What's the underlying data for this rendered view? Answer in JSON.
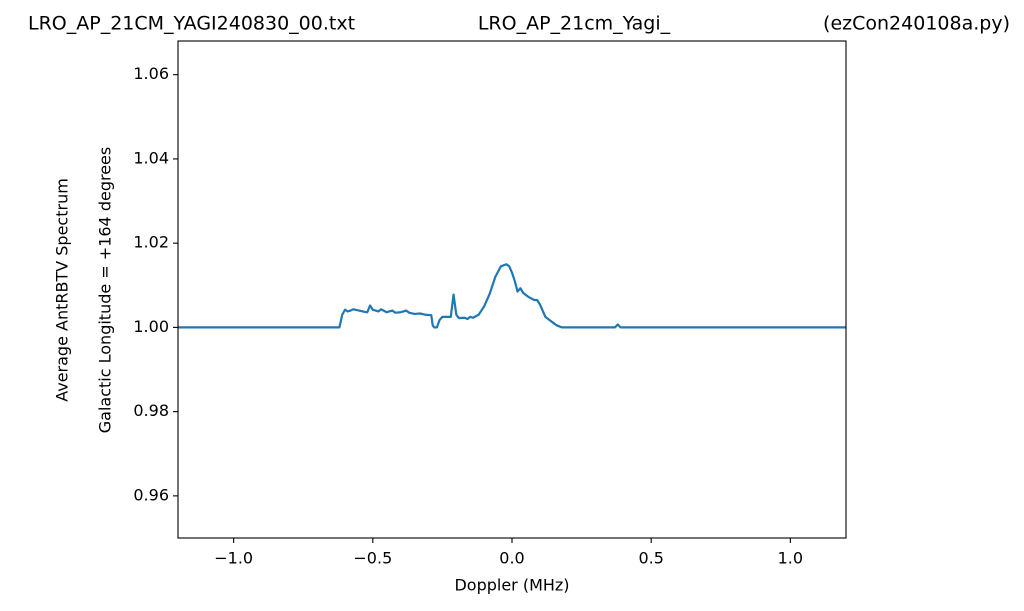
{
  "chart_data": {
    "type": "line",
    "title_left": "LRO_AP_21CM_YAGI240830_00.txt",
    "title": "LRO_AP_21cm_Yagi_",
    "title_right": "(ezCon240108a.py)",
    "x_label": "Doppler (MHz)",
    "y_label": [
      "Average AntRBTV Spectrum",
      "Galactic Longitude = +164 degrees"
    ],
    "xlim": [
      -1.2,
      1.2
    ],
    "ylim": [
      0.95,
      1.068
    ],
    "xticks": [
      {
        "value": -1.0,
        "label": "−1.0"
      },
      {
        "value": -0.5,
        "label": "−0.5"
      },
      {
        "value": 0.0,
        "label": "0.0"
      },
      {
        "value": 0.5,
        "label": "0.5"
      },
      {
        "value": 1.0,
        "label": "1.0"
      }
    ],
    "yticks": [
      0.96,
      0.98,
      {
        "value": 1.0,
        "label": "1.00"
      },
      1.02,
      1.04,
      1.06
    ],
    "grid": false,
    "series": [
      {
        "color": "#1f77b4",
        "x": [
          -1.2,
          -0.62,
          -0.61,
          -0.6,
          -0.59,
          -0.58,
          -0.57,
          -0.55,
          -0.53,
          -0.52,
          -0.51,
          -0.5,
          -0.48,
          -0.47,
          -0.45,
          -0.43,
          -0.42,
          -0.4,
          -0.38,
          -0.37,
          -0.35,
          -0.33,
          -0.31,
          -0.29,
          -0.285,
          -0.28,
          -0.27,
          -0.26,
          -0.25,
          -0.23,
          -0.22,
          -0.21,
          -0.2,
          -0.19,
          -0.17,
          -0.16,
          -0.15,
          -0.14,
          -0.12,
          -0.11,
          -0.1,
          -0.08,
          -0.06,
          -0.04,
          -0.02,
          -0.01,
          0.0,
          0.01,
          0.02,
          0.03,
          0.04,
          0.06,
          0.08,
          0.09,
          0.1,
          0.11,
          0.12,
          0.14,
          0.15,
          0.16,
          0.18,
          0.37,
          0.38,
          0.39,
          1.2
        ],
        "values": [
          1.0,
          1.0,
          1.003,
          1.0042,
          1.0038,
          1.004,
          1.0043,
          1.004,
          1.0037,
          1.0036,
          1.0052,
          1.0042,
          1.0038,
          1.0043,
          1.0036,
          1.004,
          1.0035,
          1.0036,
          1.004,
          1.0035,
          1.0032,
          1.0033,
          1.003,
          1.0029,
          1.0005,
          1.0,
          1.0,
          1.0018,
          1.0025,
          1.0025,
          1.0025,
          1.0078,
          1.003,
          1.0022,
          1.0023,
          1.002,
          1.0025,
          1.0023,
          1.003,
          1.004,
          1.005,
          1.008,
          1.012,
          1.0145,
          1.015,
          1.0145,
          1.013,
          1.011,
          1.0085,
          1.0093,
          1.0082,
          1.0072,
          1.0065,
          1.0065,
          1.0055,
          1.004,
          1.0025,
          1.0015,
          1.001,
          1.0005,
          1.0,
          1.0,
          1.0007,
          1.0,
          1.0
        ]
      }
    ]
  }
}
